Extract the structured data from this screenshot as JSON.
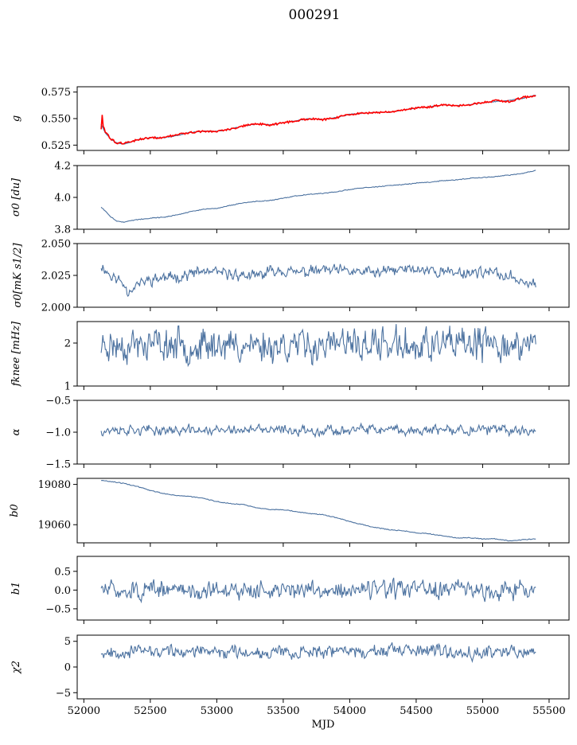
{
  "figure_title": "000291",
  "chart_data": [
    {
      "type": "line",
      "id": "g",
      "ylabel": "g",
      "ylim": [
        0.52,
        0.58
      ],
      "yticks": [
        0.525,
        0.55,
        0.575
      ],
      "yticklabels": [
        "0.525",
        "0.550",
        "0.575"
      ],
      "xlim": [
        51950,
        55650
      ],
      "x_start": 52130,
      "x_end": 55400,
      "series": [
        {
          "color": "#4c72a0",
          "x": [
            52130,
            52160,
            52200,
            52250,
            52300,
            52350,
            52400,
            52500,
            52600,
            52700,
            52800,
            52900,
            53000,
            53100,
            53200,
            53300,
            53400,
            53500,
            53600,
            53700,
            53800,
            53900,
            54000,
            54100,
            54200,
            54300,
            54400,
            54500,
            54600,
            54700,
            54800,
            54900,
            55000,
            55100,
            55200,
            55300,
            55400
          ],
          "values": [
            0.545,
            0.537,
            0.531,
            0.527,
            0.526,
            0.528,
            0.53,
            0.532,
            0.532,
            0.534,
            0.537,
            0.538,
            0.538,
            0.54,
            0.543,
            0.545,
            0.544,
            0.546,
            0.548,
            0.55,
            0.549,
            0.551,
            0.554,
            0.555,
            0.556,
            0.556,
            0.558,
            0.56,
            0.561,
            0.563,
            0.562,
            0.563,
            0.565,
            0.566,
            0.567,
            0.569,
            0.572
          ]
        },
        {
          "color": "#ff0000",
          "x": [
            52130,
            52160,
            52200,
            52250,
            52300,
            52350,
            52400,
            52500,
            52600,
            52700,
            52800,
            52900,
            53000,
            53100,
            53200,
            53300,
            53400,
            53500,
            53600,
            53700,
            53800,
            53900,
            54000,
            54100,
            54200,
            54300,
            54400,
            54500,
            54600,
            54700,
            54800,
            54900,
            55000,
            55100,
            55200,
            55300,
            55400
          ],
          "values": [
            0.548,
            0.538,
            0.531,
            0.527,
            0.527,
            0.528,
            0.53,
            0.532,
            0.532,
            0.535,
            0.537,
            0.538,
            0.538,
            0.54,
            0.543,
            0.545,
            0.544,
            0.546,
            0.548,
            0.55,
            0.549,
            0.551,
            0.554,
            0.555,
            0.556,
            0.556,
            0.558,
            0.56,
            0.561,
            0.563,
            0.562,
            0.563,
            0.565,
            0.567,
            0.566,
            0.57,
            0.571
          ]
        }
      ]
    },
    {
      "type": "line",
      "id": "sigma0_du",
      "ylabel": "σ0 [du]",
      "ylim": [
        3.8,
        4.2
      ],
      "yticks": [
        3.8,
        4.0,
        4.2
      ],
      "yticklabels": [
        "3.8",
        "4.0",
        "4.2"
      ],
      "xlim": [
        51950,
        55650
      ],
      "series": [
        {
          "color": "#4c72a0",
          "x": [
            52130,
            52200,
            52250,
            52300,
            52400,
            52500,
            52600,
            52700,
            52800,
            52900,
            53000,
            53100,
            53200,
            53300,
            53400,
            53500,
            53600,
            53700,
            53800,
            53900,
            54000,
            54100,
            54200,
            54300,
            54400,
            54500,
            54600,
            54700,
            54800,
            54900,
            55000,
            55100,
            55200,
            55300,
            55400
          ],
          "values": [
            3.94,
            3.88,
            3.85,
            3.845,
            3.86,
            3.87,
            3.875,
            3.89,
            3.91,
            3.925,
            3.93,
            3.95,
            3.965,
            3.975,
            3.98,
            3.995,
            4.01,
            4.02,
            4.025,
            4.035,
            4.05,
            4.06,
            4.065,
            4.075,
            4.08,
            4.09,
            4.095,
            4.105,
            4.11,
            4.12,
            4.125,
            4.13,
            4.14,
            4.15,
            4.17
          ]
        }
      ]
    },
    {
      "type": "line",
      "id": "sigma0_mks",
      "ylabel": "σ0[mK s1/2]",
      "ylim": [
        2.0,
        2.05
      ],
      "yticks": [
        2.0,
        2.025,
        2.05
      ],
      "yticklabels": [
        "2.000",
        "2.025",
        "2.050"
      ],
      "xlim": [
        51950,
        55650
      ],
      "x_start": 52130,
      "x_end": 55400,
      "noise": {
        "mean": 2.026,
        "amplitude": 0.004,
        "seed": 11
      },
      "series": [
        {
          "color": "#4c72a0",
          "x": [
            52130,
            52200,
            52300,
            52330,
            52400,
            52500,
            52700,
            52900,
            53100,
            53300,
            53450,
            53600,
            53800,
            54000,
            54200,
            54400,
            54600,
            54800,
            55000,
            55200,
            55400
          ],
          "values": [
            2.033,
            2.025,
            2.019,
            2.012,
            2.018,
            2.022,
            2.024,
            2.028,
            2.026,
            2.024,
            2.03,
            2.027,
            2.029,
            2.028,
            2.027,
            2.03,
            2.029,
            2.027,
            2.028,
            2.024,
            2.018
          ]
        }
      ]
    },
    {
      "type": "line",
      "id": "fknee",
      "ylabel": "fknee [mHz]",
      "ylim": [
        1,
        2.5
      ],
      "yticks": [
        1,
        2
      ],
      "yticklabels": [
        "1",
        "2"
      ],
      "xlim": [
        51950,
        55650
      ],
      "noise": {
        "mean": 1.95,
        "amplitude": 0.35,
        "seed": 23
      },
      "series": [
        {
          "color": "#4c72a0",
          "x": [
            52130,
            55400
          ],
          "values": [
            1.95,
            1.95
          ]
        }
      ]
    },
    {
      "type": "line",
      "id": "alpha",
      "ylabel": "α",
      "ylim": [
        -1.5,
        -0.5
      ],
      "yticks": [
        -1.5,
        -1.0,
        -0.5
      ],
      "yticklabels": [
        "−1.5",
        "−1.0",
        "−0.5"
      ],
      "xlim": [
        51950,
        55650
      ],
      "noise": {
        "mean": -0.97,
        "amplitude": 0.07,
        "seed": 37
      },
      "series": [
        {
          "color": "#4c72a0",
          "x": [
            52130,
            55400
          ],
          "values": [
            -0.97,
            -0.97
          ]
        }
      ]
    },
    {
      "type": "line",
      "id": "b0",
      "ylabel": "b0",
      "ylim": [
        19051,
        19083
      ],
      "yticks": [
        19060,
        19080
      ],
      "yticklabels": [
        "19060",
        "19080"
      ],
      "xlim": [
        51950,
        55650
      ],
      "series": [
        {
          "color": "#4c72a0",
          "x": [
            52130,
            52200,
            52300,
            52400,
            52500,
            52600,
            52700,
            52800,
            52900,
            53000,
            53100,
            53200,
            53300,
            53400,
            53500,
            53600,
            53700,
            53800,
            53900,
            54000,
            54100,
            54200,
            54300,
            54400,
            54500,
            54600,
            54700,
            54800,
            54900,
            55000,
            55100,
            55200,
            55300,
            55400
          ],
          "values": [
            19082,
            19081.5,
            19080.5,
            19079,
            19077,
            19075.5,
            19074.5,
            19074,
            19073,
            19071.5,
            19070.5,
            19070,
            19068.5,
            19067.5,
            19067.5,
            19066.5,
            19065.5,
            19065,
            19063.5,
            19061.5,
            19060,
            19058.5,
            19057.5,
            19057,
            19056,
            19055.5,
            19054.5,
            19053.5,
            19053.5,
            19053,
            19053,
            19052,
            19052.5,
            19053
          ]
        }
      ]
    },
    {
      "type": "line",
      "id": "b1",
      "ylabel": "b1",
      "ylim": [
        -0.8,
        0.9
      ],
      "yticks": [
        -0.5,
        0.0,
        0.5
      ],
      "yticklabels": [
        "−0.5",
        "0.0",
        "0.5"
      ],
      "xlim": [
        51950,
        55650
      ],
      "noise": {
        "mean": 0.0,
        "amplitude": 0.22,
        "seed": 51
      },
      "series": [
        {
          "color": "#4c72a0",
          "x": [
            52130,
            55400
          ],
          "values": [
            0.0,
            0.0
          ]
        }
      ]
    },
    {
      "type": "line",
      "id": "chi2",
      "ylabel": "χ2",
      "xlabel": "MJD",
      "ylim": [
        -6.2,
        6.2
      ],
      "yticks": [
        -5,
        0,
        5
      ],
      "yticklabels": [
        "−5",
        "0",
        "5"
      ],
      "xlim": [
        51950,
        55650
      ],
      "xticks": [
        52000,
        52500,
        53000,
        53500,
        54000,
        54500,
        55000,
        55500
      ],
      "xticklabels": [
        "52000",
        "52500",
        "53000",
        "53500",
        "54000",
        "54500",
        "55000",
        "55500"
      ],
      "noise": {
        "mean": 3.0,
        "amplitude": 1.1,
        "seed": 67
      },
      "series": [
        {
          "color": "#4c72a0",
          "x": [
            52130,
            55400
          ],
          "values": [
            3.0,
            3.0
          ]
        }
      ]
    }
  ]
}
